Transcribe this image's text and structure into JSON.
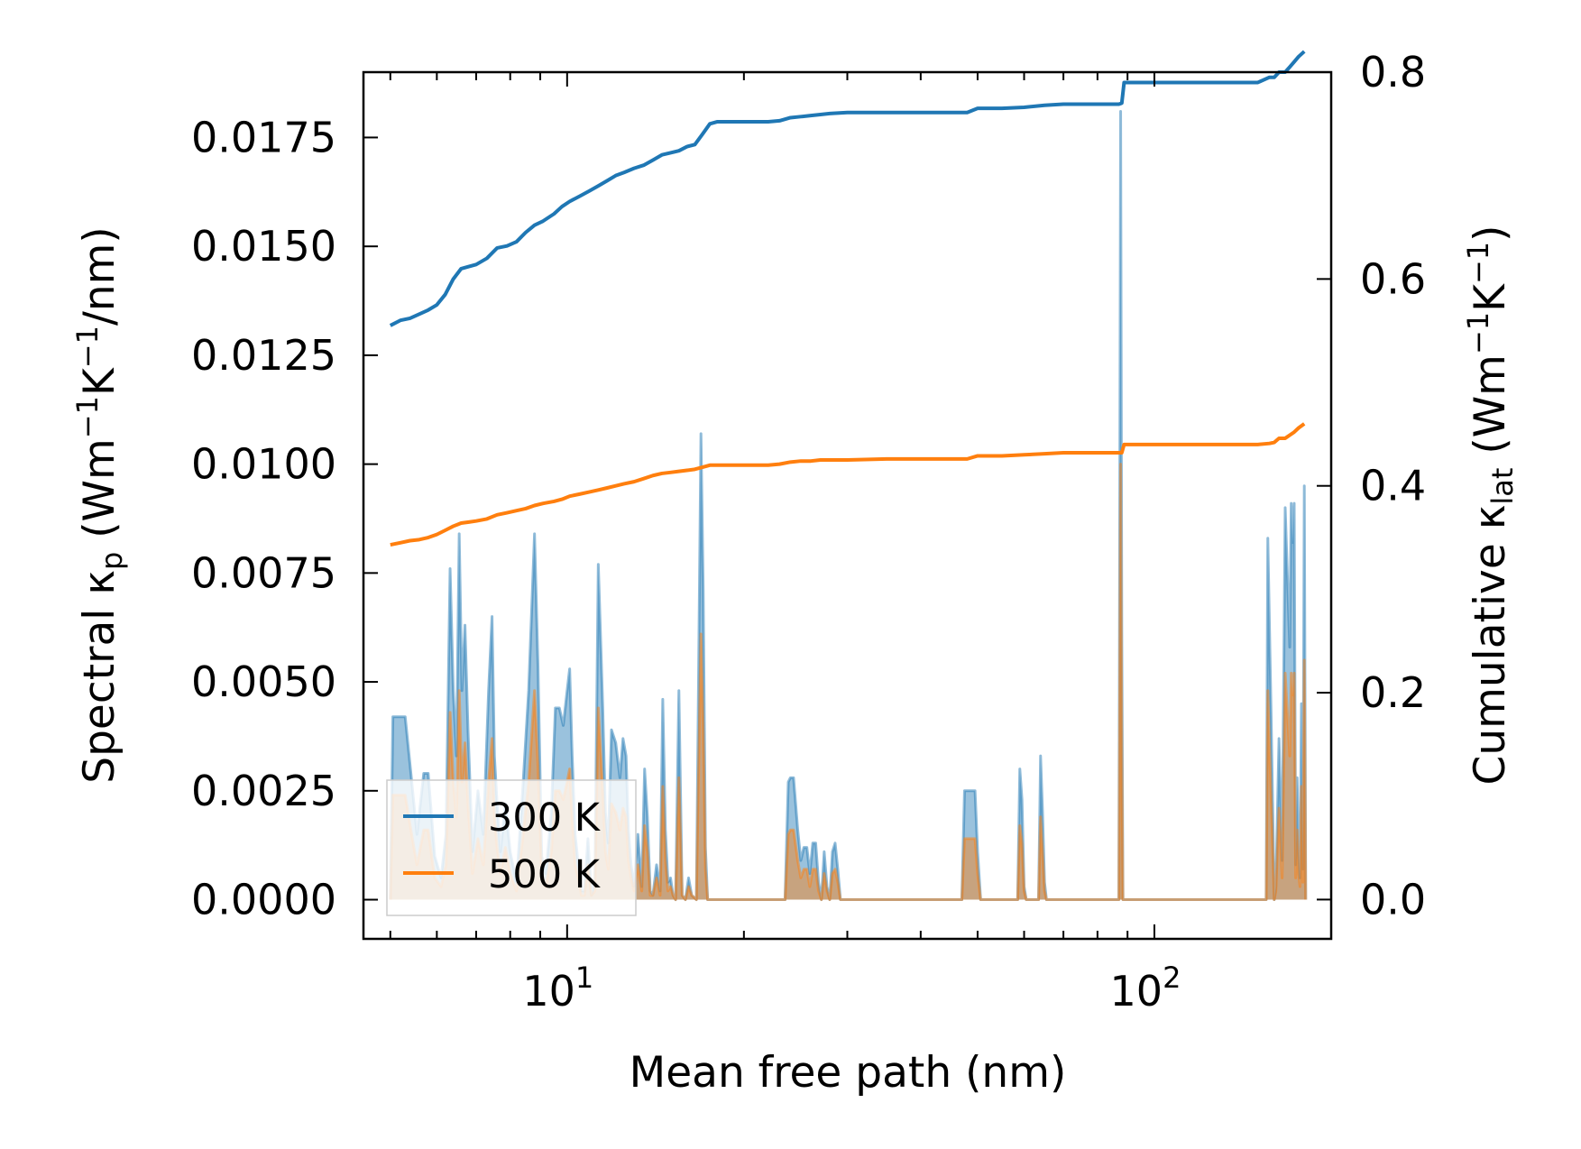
{
  "chart_data": {
    "type": "line",
    "xscale": "log",
    "xlabel": "Mean free path (nm)",
    "ylabel_left": {
      "main": "Spectral κ",
      "sub": "p",
      "unit_a": " (Wm",
      "sup1": "−1",
      "unit_b": "K",
      "sup2": "−1",
      "unit_c": "/nm)"
    },
    "ylabel_right": {
      "main": "Cumulative κ",
      "sub": "lat",
      "unit_a": " (Wm",
      "sup1": "−1",
      "unit_b": "K",
      "sup2": "−1",
      "unit_c": ")"
    },
    "xlim": [
      4.5,
      200
    ],
    "ylim_left": [
      -0.0009,
      0.019
    ],
    "ylim_right": [
      -0.038,
      0.8
    ],
    "xticks": [
      {
        "value": 10,
        "base": "10",
        "exp": "1"
      },
      {
        "value": 100,
        "base": "10",
        "exp": "2"
      }
    ],
    "yticks_left": [
      "0.0000",
      "0.0025",
      "0.0050",
      "0.0075",
      "0.0100",
      "0.0125",
      "0.0150",
      "0.0175"
    ],
    "yticks_right": [
      "0.0",
      "0.2",
      "0.4",
      "0.6",
      "0.8"
    ],
    "legend": {
      "position": "lower-left",
      "entries": [
        "300 K",
        "500 K"
      ]
    },
    "colors": {
      "s300": "#1f77b4",
      "s500": "#ff7f0e"
    },
    "spectral_300K": {
      "x": [
        5.0,
        5.05,
        5.2,
        5.3,
        5.42,
        5.55,
        5.7,
        5.8,
        5.95,
        6.1,
        6.22,
        6.32,
        6.4,
        6.48,
        6.55,
        6.62,
        6.7,
        6.78,
        6.9,
        7.05,
        7.2,
        7.35,
        7.45,
        7.52,
        7.6,
        7.7,
        7.85,
        8.0,
        8.2,
        8.4,
        8.6,
        8.8,
        8.92,
        9.05,
        9.2,
        9.4,
        9.55,
        9.7,
        9.85,
        10.0,
        10.1,
        10.2,
        10.32,
        10.45,
        10.58,
        10.7,
        10.85,
        11.0,
        11.15,
        11.3,
        11.5,
        11.62,
        11.75,
        11.9,
        12.1,
        12.3,
        12.45,
        12.6,
        12.72,
        12.85,
        13.0,
        13.2,
        13.4,
        13.55,
        13.7,
        13.85,
        14.0,
        14.2,
        14.4,
        14.55,
        14.7,
        14.85,
        15.0,
        15.15,
        15.3,
        15.5,
        15.7,
        15.9,
        16.1,
        16.3,
        16.6,
        16.9,
        17.05,
        17.2,
        17.35,
        17.5,
        17.7,
        17.9,
        18.2,
        20,
        22,
        23.5,
        23.8,
        24.0,
        24.3,
        24.7,
        25.0,
        25.3,
        25.6,
        25.9,
        26.2,
        26.5,
        26.8,
        27.1,
        27.4,
        27.7,
        28.0,
        28.3,
        28.6,
        28.9,
        29.2,
        29.5,
        29.8,
        30.2,
        35,
        40,
        47,
        47.5,
        48,
        48.5,
        49,
        49.5,
        50,
        50.6,
        55,
        58,
        58.5,
        59,
        59.5,
        60,
        60.5,
        61,
        62,
        63,
        63.5,
        64,
        64.5,
        65,
        65.5,
        66,
        70,
        80,
        86,
        87,
        87.6,
        88.0,
        88.4,
        88.8,
        89.4,
        90,
        100,
        130,
        155,
        156,
        158,
        160,
        161,
        163,
        165,
        167,
        170,
        171,
        172,
        173,
        174,
        175,
        176,
        177,
        178,
        179,
        180,
        181
      ],
      "y": [
        0,
        0.0042,
        0.0042,
        0.0042,
        0.0029,
        0.0015,
        0.0029,
        0.0029,
        0.001,
        0.0005,
        0.0015,
        0.0076,
        0.0048,
        0.0033,
        0.0084,
        0.0048,
        0.0063,
        0.0039,
        0.0011,
        0.0025,
        0.0015,
        0.0048,
        0.0065,
        0.0033,
        0.0022,
        0.0011,
        0.0022,
        0.0011,
        0.0004,
        0.0025,
        0.0048,
        0.0084,
        0.0054,
        0.001,
        0.0006,
        0.002,
        0.0044,
        0.0044,
        0.004,
        0.0048,
        0.0053,
        0.0033,
        0.0015,
        0.0008,
        0.0002,
        0.0002,
        0.0014,
        0.0001,
        0.0004,
        0.0077,
        0.0044,
        0.002,
        0.0013,
        0.0039,
        0.0036,
        0.0028,
        0.0037,
        0.0033,
        0.0016,
        0.0008,
        0.0003,
        0.0015,
        0.0003,
        0.003,
        0.0019,
        0.0002,
        0.0001,
        0.0008,
        0.0002,
        0.0046,
        0.0016,
        0.0004,
        0.0005,
        0.0001,
        0,
        0.0048,
        0.0001,
        0,
        0.0005,
        0.0001,
        0,
        0.0107,
        0.0071,
        0.0012,
        0,
        0,
        0,
        0,
        0,
        0,
        0,
        0,
        0.0027,
        0.0028,
        0.0028,
        0.0016,
        0.0009,
        0.0012,
        0.0012,
        0.0006,
        0.0013,
        0.0013,
        0.0004,
        0,
        0.0011,
        0.0003,
        0,
        0.0011,
        0.0013,
        0.0007,
        0,
        0,
        0,
        0,
        0,
        0,
        0,
        0.0025,
        0.0025,
        0.0025,
        0.0025,
        0.0025,
        0.0011,
        0,
        0,
        0,
        0,
        0.003,
        0.0023,
        0.0003,
        0,
        0,
        0,
        0,
        0,
        0.0033,
        0.002,
        0.0004,
        0,
        0,
        0,
        0,
        0,
        0,
        0.0181,
        0.0062,
        0,
        0,
        0,
        0,
        0,
        0,
        0,
        0.0083,
        0.0043,
        0,
        0.0003,
        0.0037,
        0.0009,
        0.009,
        0.0058,
        0.0091,
        0.0082,
        0.0091,
        0.0008,
        0.0028,
        0.0011,
        0.0005,
        0.0045,
        0.0007,
        0.0095,
        0
      ]
    },
    "spectral_500K": {
      "x": [
        5.0,
        5.05,
        5.2,
        5.3,
        5.42,
        5.55,
        5.7,
        5.8,
        5.95,
        6.1,
        6.22,
        6.32,
        6.4,
        6.48,
        6.55,
        6.62,
        6.7,
        6.78,
        6.9,
        7.05,
        7.2,
        7.35,
        7.45,
        7.52,
        7.6,
        7.7,
        7.85,
        8.0,
        8.2,
        8.4,
        8.6,
        8.8,
        8.92,
        9.05,
        9.2,
        9.4,
        9.55,
        9.7,
        9.85,
        10.0,
        10.1,
        10.2,
        10.32,
        10.45,
        10.58,
        10.7,
        10.85,
        11.0,
        11.15,
        11.3,
        11.5,
        11.62,
        11.75,
        11.9,
        12.1,
        12.3,
        12.45,
        12.6,
        12.72,
        12.85,
        13.0,
        13.2,
        13.4,
        13.55,
        13.7,
        13.85,
        14.0,
        14.2,
        14.4,
        14.55,
        14.7,
        14.85,
        15.0,
        15.15,
        15.3,
        15.5,
        15.7,
        15.9,
        16.1,
        16.3,
        16.6,
        16.9,
        17.05,
        17.2,
        17.35,
        17.5,
        17.7,
        17.9,
        18.2,
        20,
        22,
        23.5,
        23.8,
        24.0,
        24.3,
        24.7,
        25.0,
        25.3,
        25.6,
        25.9,
        26.2,
        26.5,
        26.8,
        27.1,
        27.4,
        27.7,
        28.0,
        28.3,
        28.6,
        28.9,
        29.2,
        29.5,
        29.8,
        30.2,
        35,
        40,
        47,
        47.5,
        48,
        48.5,
        49,
        49.5,
        50,
        50.6,
        55,
        58,
        58.5,
        59,
        59.5,
        60,
        60.5,
        61,
        62,
        63,
        63.5,
        64,
        64.5,
        65,
        65.5,
        66,
        70,
        80,
        86,
        87,
        87.6,
        88.0,
        88.4,
        88.8,
        89.4,
        90,
        100,
        130,
        155,
        156,
        158,
        160,
        161,
        163,
        165,
        167,
        170,
        171,
        172,
        173,
        174,
        175,
        176,
        177,
        178,
        179,
        180,
        181
      ],
      "y": [
        0,
        0.0024,
        0.0024,
        0.0024,
        0.0016,
        0.0008,
        0.0016,
        0.0016,
        0.0005,
        0.0003,
        0.0008,
        0.0043,
        0.0027,
        0.0019,
        0.0048,
        0.0027,
        0.0036,
        0.0022,
        0.0006,
        0.0014,
        0.0008,
        0.0027,
        0.0037,
        0.0019,
        0.0012,
        0.0006,
        0.0012,
        0.0006,
        0.0002,
        0.0014,
        0.0027,
        0.0048,
        0.0031,
        0.0006,
        0.0003,
        0.0011,
        0.0025,
        0.0025,
        0.0023,
        0.0027,
        0.003,
        0.0019,
        0.0008,
        0.0005,
        0.0001,
        0.0001,
        0.0008,
        0.0001,
        0.0002,
        0.0044,
        0.0025,
        0.0011,
        0.0007,
        0.0022,
        0.002,
        0.0016,
        0.0021,
        0.0019,
        0.0009,
        0.0005,
        0.0002,
        0.0008,
        0.0002,
        0.0017,
        0.0011,
        0.0001,
        0.0001,
        0.0005,
        0.0001,
        0.0026,
        0.0009,
        0.0002,
        0.0003,
        0.0001,
        0,
        0.0028,
        0.0001,
        0,
        0.0003,
        0.0001,
        0,
        0.0061,
        0.004,
        0.0007,
        0,
        0,
        0,
        0,
        0,
        0,
        0,
        0,
        0.0015,
        0.0016,
        0.0016,
        0.0009,
        0.0005,
        0.0007,
        0.0007,
        0.0003,
        0.0007,
        0.0007,
        0.0002,
        0,
        0.0006,
        0.0002,
        0,
        0.0006,
        0.0007,
        0.0004,
        0,
        0,
        0,
        0,
        0,
        0,
        0,
        0.0014,
        0.0014,
        0.0014,
        0.0014,
        0.0014,
        0.0006,
        0,
        0,
        0,
        0,
        0.0017,
        0.0013,
        0.0002,
        0,
        0,
        0,
        0,
        0,
        0.0019,
        0.0011,
        0.0002,
        0,
        0,
        0,
        0,
        0,
        0,
        0.01,
        0.0035,
        0,
        0,
        0,
        0,
        0,
        0,
        0,
        0.0048,
        0.0024,
        0,
        0.0002,
        0.0021,
        0.0005,
        0.0052,
        0.0033,
        0.0052,
        0.0047,
        0.0052,
        0.0005,
        0.0016,
        0.0006,
        0.0003,
        0.0026,
        0.0004,
        0.0055,
        0
      ]
    },
    "cumulative_300K": {
      "x": [
        5.0,
        5.2,
        5.4,
        5.6,
        5.8,
        6.0,
        6.2,
        6.4,
        6.6,
        6.8,
        7.0,
        7.3,
        7.6,
        7.9,
        8.2,
        8.5,
        8.8,
        9.1,
        9.5,
        9.8,
        10.1,
        10.5,
        10.9,
        11.3,
        11.7,
        12.1,
        12.5,
        13.0,
        13.5,
        14.0,
        14.5,
        15.0,
        15.5,
        16.0,
        16.5,
        17.0,
        17.5,
        18,
        19,
        20,
        21,
        22,
        23,
        24,
        25,
        26,
        27,
        28,
        30,
        35,
        40,
        45,
        48,
        50,
        55,
        60,
        65,
        70,
        80,
        87,
        88,
        88.8,
        90,
        100,
        120,
        150,
        157,
        160,
        163,
        167,
        170,
        173,
        176,
        180
      ],
      "y": [
        0.555,
        0.56,
        0.562,
        0.566,
        0.57,
        0.575,
        0.585,
        0.6,
        0.61,
        0.612,
        0.614,
        0.62,
        0.63,
        0.632,
        0.636,
        0.645,
        0.652,
        0.656,
        0.663,
        0.67,
        0.675,
        0.68,
        0.685,
        0.69,
        0.695,
        0.7,
        0.703,
        0.707,
        0.71,
        0.715,
        0.72,
        0.722,
        0.724,
        0.728,
        0.73,
        0.74,
        0.75,
        0.752,
        0.752,
        0.752,
        0.752,
        0.752,
        0.753,
        0.756,
        0.757,
        0.758,
        0.759,
        0.76,
        0.761,
        0.761,
        0.761,
        0.761,
        0.761,
        0.765,
        0.765,
        0.766,
        0.768,
        0.769,
        0.769,
        0.769,
        0.77,
        0.79,
        0.79,
        0.79,
        0.79,
        0.79,
        0.795,
        0.795,
        0.8,
        0.8,
        0.805,
        0.81,
        0.815,
        0.82
      ]
    },
    "cumulative_500K": {
      "x": [
        5.0,
        5.2,
        5.4,
        5.6,
        5.8,
        6.0,
        6.2,
        6.4,
        6.6,
        6.8,
        7.0,
        7.3,
        7.6,
        7.9,
        8.2,
        8.5,
        8.8,
        9.1,
        9.5,
        9.8,
        10.1,
        10.5,
        10.9,
        11.3,
        11.7,
        12.1,
        12.5,
        13.0,
        13.5,
        14.0,
        14.5,
        15.0,
        15.5,
        16.0,
        16.5,
        17.0,
        17.5,
        18,
        19,
        20,
        21,
        22,
        23,
        24,
        25,
        26,
        27,
        28,
        30,
        35,
        40,
        45,
        48,
        50,
        55,
        60,
        65,
        70,
        80,
        87,
        88,
        88.8,
        90,
        100,
        120,
        150,
        157,
        160,
        163,
        167,
        170,
        173,
        176,
        180
      ],
      "y": [
        0.343,
        0.345,
        0.347,
        0.348,
        0.35,
        0.353,
        0.357,
        0.361,
        0.364,
        0.365,
        0.366,
        0.368,
        0.372,
        0.374,
        0.376,
        0.378,
        0.381,
        0.383,
        0.385,
        0.387,
        0.39,
        0.392,
        0.394,
        0.396,
        0.398,
        0.4,
        0.402,
        0.404,
        0.407,
        0.41,
        0.412,
        0.413,
        0.414,
        0.415,
        0.416,
        0.418,
        0.42,
        0.42,
        0.42,
        0.42,
        0.42,
        0.42,
        0.421,
        0.423,
        0.424,
        0.424,
        0.425,
        0.425,
        0.425,
        0.426,
        0.426,
        0.426,
        0.426,
        0.429,
        0.429,
        0.43,
        0.431,
        0.432,
        0.432,
        0.432,
        0.432,
        0.44,
        0.44,
        0.44,
        0.44,
        0.44,
        0.441,
        0.442,
        0.446,
        0.446,
        0.449,
        0.452,
        0.456,
        0.46
      ]
    }
  }
}
